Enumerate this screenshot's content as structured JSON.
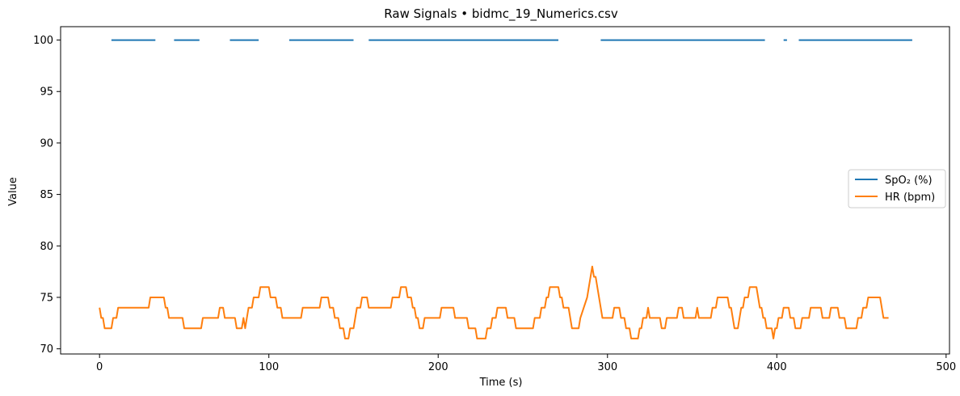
{
  "chart_data": {
    "type": "line",
    "title": "Raw Signals • bidmc_19_Numerics.csv",
    "xlabel": "Time (s)",
    "ylabel": "Value",
    "xlim": [
      -23,
      502
    ],
    "ylim": [
      69.5,
      101.3
    ],
    "xticks": [
      0,
      100,
      200,
      300,
      400,
      500
    ],
    "yticks": [
      70,
      75,
      80,
      85,
      90,
      95,
      100
    ],
    "grid": false,
    "legend": "center-right",
    "series": [
      {
        "name": "SpO₂ (%)",
        "color": "#1f77b4",
        "segments": [
          [
            [
              7,
              100
            ],
            [
              33,
              100
            ]
          ],
          [
            [
              44,
              100
            ],
            [
              59,
              100
            ]
          ],
          [
            [
              77,
              100
            ],
            [
              94,
              100
            ]
          ],
          [
            [
              112,
              100
            ],
            [
              150,
              100
            ]
          ],
          [
            [
              159,
              100
            ],
            [
              271,
              100
            ]
          ],
          [
            [
              296,
              100
            ],
            [
              393,
              100
            ]
          ],
          [
            [
              404,
              100
            ],
            [
              406,
              100
            ]
          ],
          [
            [
              413,
              100
            ],
            [
              480,
              100
            ]
          ]
        ]
      },
      {
        "name": "HR (bpm)",
        "color": "#ff7f0e",
        "points": [
          [
            0,
            74
          ],
          [
            1,
            73
          ],
          [
            2,
            73
          ],
          [
            3,
            72
          ],
          [
            7,
            72
          ],
          [
            8,
            73
          ],
          [
            10,
            73
          ],
          [
            11,
            74
          ],
          [
            29,
            74
          ],
          [
            30,
            75
          ],
          [
            38,
            75
          ],
          [
            39,
            74
          ],
          [
            40,
            74
          ],
          [
            41,
            73
          ],
          [
            49,
            73
          ],
          [
            50,
            72
          ],
          [
            60,
            72
          ],
          [
            61,
            73
          ],
          [
            70,
            73
          ],
          [
            71,
            74
          ],
          [
            73,
            74
          ],
          [
            74,
            73
          ],
          [
            80,
            73
          ],
          [
            81,
            72
          ],
          [
            84,
            72
          ],
          [
            85,
            73
          ],
          [
            86,
            72
          ],
          [
            87,
            73
          ],
          [
            88,
            74
          ],
          [
            90,
            74
          ],
          [
            91,
            75
          ],
          [
            94,
            75
          ],
          [
            95,
            76
          ],
          [
            100,
            76
          ],
          [
            101,
            75
          ],
          [
            104,
            75
          ],
          [
            105,
            74
          ],
          [
            107,
            74
          ],
          [
            108,
            73
          ],
          [
            119,
            73
          ],
          [
            120,
            74
          ],
          [
            130,
            74
          ],
          [
            131,
            75
          ],
          [
            135,
            75
          ],
          [
            136,
            74
          ],
          [
            138,
            74
          ],
          [
            139,
            73
          ],
          [
            141,
            73
          ],
          [
            142,
            72
          ],
          [
            144,
            72
          ],
          [
            145,
            71
          ],
          [
            147,
            71
          ],
          [
            148,
            72
          ],
          [
            150,
            72
          ],
          [
            151,
            73
          ],
          [
            152,
            74
          ],
          [
            154,
            74
          ],
          [
            155,
            75
          ],
          [
            158,
            75
          ],
          [
            159,
            74
          ],
          [
            172,
            74
          ],
          [
            173,
            75
          ],
          [
            177,
            75
          ],
          [
            178,
            76
          ],
          [
            181,
            76
          ],
          [
            182,
            75
          ],
          [
            184,
            75
          ],
          [
            185,
            74
          ],
          [
            186,
            74
          ],
          [
            187,
            73
          ],
          [
            188,
            73
          ],
          [
            189,
            72
          ],
          [
            191,
            72
          ],
          [
            192,
            73
          ],
          [
            201,
            73
          ],
          [
            202,
            74
          ],
          [
            209,
            74
          ],
          [
            210,
            73
          ],
          [
            217,
            73
          ],
          [
            218,
            72
          ],
          [
            222,
            72
          ],
          [
            223,
            71
          ],
          [
            228,
            71
          ],
          [
            229,
            72
          ],
          [
            231,
            72
          ],
          [
            232,
            73
          ],
          [
            234,
            73
          ],
          [
            235,
            74
          ],
          [
            240,
            74
          ],
          [
            241,
            73
          ],
          [
            245,
            73
          ],
          [
            246,
            72
          ],
          [
            256,
            72
          ],
          [
            257,
            73
          ],
          [
            260,
            73
          ],
          [
            261,
            74
          ],
          [
            263,
            74
          ],
          [
            264,
            75
          ],
          [
            265,
            75
          ],
          [
            266,
            76
          ],
          [
            271,
            76
          ],
          [
            272,
            75
          ],
          [
            273,
            75
          ],
          [
            274,
            74
          ],
          [
            277,
            74
          ],
          [
            278,
            73
          ],
          [
            279,
            72
          ],
          [
            283,
            72
          ],
          [
            284,
            73
          ],
          [
            286,
            74
          ],
          [
            288,
            75
          ],
          [
            289,
            76
          ],
          [
            290,
            77
          ],
          [
            291,
            78
          ],
          [
            292,
            77
          ],
          [
            293,
            77
          ],
          [
            297,
            73
          ],
          [
            303,
            73
          ],
          [
            304,
            74
          ],
          [
            307,
            74
          ],
          [
            308,
            73
          ],
          [
            310,
            73
          ],
          [
            311,
            72
          ],
          [
            313,
            72
          ],
          [
            314,
            71
          ],
          [
            318,
            71
          ],
          [
            319,
            72
          ],
          [
            320,
            72
          ],
          [
            321,
            73
          ],
          [
            323,
            73
          ],
          [
            324,
            74
          ],
          [
            325,
            73
          ],
          [
            331,
            73
          ],
          [
            332,
            72
          ],
          [
            334,
            72
          ],
          [
            335,
            73
          ],
          [
            341,
            73
          ],
          [
            342,
            74
          ],
          [
            344,
            74
          ],
          [
            345,
            73
          ],
          [
            352,
            73
          ],
          [
            353,
            74
          ],
          [
            354,
            73
          ],
          [
            361,
            73
          ],
          [
            362,
            74
          ],
          [
            364,
            74
          ],
          [
            365,
            75
          ],
          [
            371,
            75
          ],
          [
            372,
            74
          ],
          [
            373,
            74
          ],
          [
            374,
            73
          ],
          [
            375,
            72
          ],
          [
            377,
            72
          ],
          [
            378,
            73
          ],
          [
            379,
            74
          ],
          [
            380,
            74
          ],
          [
            381,
            75
          ],
          [
            383,
            75
          ],
          [
            384,
            76
          ],
          [
            388,
            76
          ],
          [
            389,
            75
          ],
          [
            390,
            74
          ],
          [
            391,
            74
          ],
          [
            392,
            73
          ],
          [
            393,
            73
          ],
          [
            394,
            72
          ],
          [
            397,
            72
          ],
          [
            398,
            71
          ],
          [
            399,
            72
          ],
          [
            400,
            72
          ],
          [
            401,
            73
          ],
          [
            403,
            73
          ],
          [
            404,
            74
          ],
          [
            407,
            74
          ],
          [
            408,
            73
          ],
          [
            410,
            73
          ],
          [
            411,
            72
          ],
          [
            414,
            72
          ],
          [
            415,
            73
          ],
          [
            419,
            73
          ],
          [
            420,
            74
          ],
          [
            426,
            74
          ],
          [
            427,
            73
          ],
          [
            431,
            73
          ],
          [
            432,
            74
          ],
          [
            436,
            74
          ],
          [
            437,
            73
          ],
          [
            440,
            73
          ],
          [
            441,
            72
          ],
          [
            447,
            72
          ],
          [
            448,
            73
          ],
          [
            450,
            73
          ],
          [
            451,
            74
          ],
          [
            453,
            74
          ],
          [
            454,
            75
          ],
          [
            461,
            75
          ],
          [
            462,
            74
          ],
          [
            463,
            73
          ],
          [
            466,
            73
          ]
        ]
      }
    ]
  }
}
